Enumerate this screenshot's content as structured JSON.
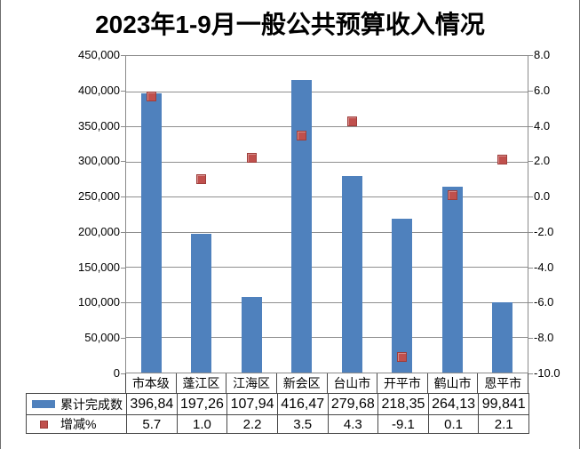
{
  "title": "2023年1-9月一般公共预算收入情况",
  "chart_data": {
    "type": "bar",
    "subtype": "combo-bar-with-square-scatter",
    "title": "2023年1-9月一般公共预算收入情况",
    "categories": [
      "市本级",
      "蓬江区",
      "江海区",
      "新会区",
      "台山市",
      "开平市",
      "鹤山市",
      "恩平市"
    ],
    "series": [
      {
        "name": "累计完成数",
        "type": "bar",
        "axis": "left",
        "values": [
          396840,
          197260,
          107940,
          416470,
          279680,
          218350,
          264130,
          99841
        ],
        "display_values": [
          "396,84",
          "197,26",
          "107,94",
          "416,47",
          "279,68",
          "218,35",
          "264,13",
          "99,841"
        ]
      },
      {
        "name": "增减%",
        "type": "scatter",
        "marker": "square",
        "axis": "right",
        "values": [
          5.7,
          1.0,
          2.2,
          3.5,
          4.3,
          -9.1,
          0.1,
          2.1
        ],
        "display_values": [
          "5.7",
          "1.0",
          "2.2",
          "3.5",
          "4.3",
          "-9.1",
          "0.1",
          "2.1"
        ]
      }
    ],
    "left_axis": {
      "min": 0,
      "max": 450000,
      "step": 50000,
      "labels": [
        "450,000",
        "400,000",
        "350,000",
        "300,000",
        "250,000",
        "200,000",
        "150,000",
        "100,000",
        "50,000",
        "0"
      ]
    },
    "right_axis": {
      "min": -10.0,
      "max": 8.0,
      "step": 2.0,
      "labels": [
        "8.0",
        "6.0",
        "4.0",
        "2.0",
        "0.0",
        "-2.0",
        "-4.0",
        "-6.0",
        "-8.0",
        "-10.0"
      ]
    },
    "grid": true,
    "legend_position": "bottom-table-left"
  },
  "colors": {
    "bar": "#4F81BD",
    "marker": "#C0504D",
    "gridline": "#8f8f8f",
    "axis_line": "#8a8a8a",
    "table_border": "#474747",
    "text": "#000000"
  }
}
